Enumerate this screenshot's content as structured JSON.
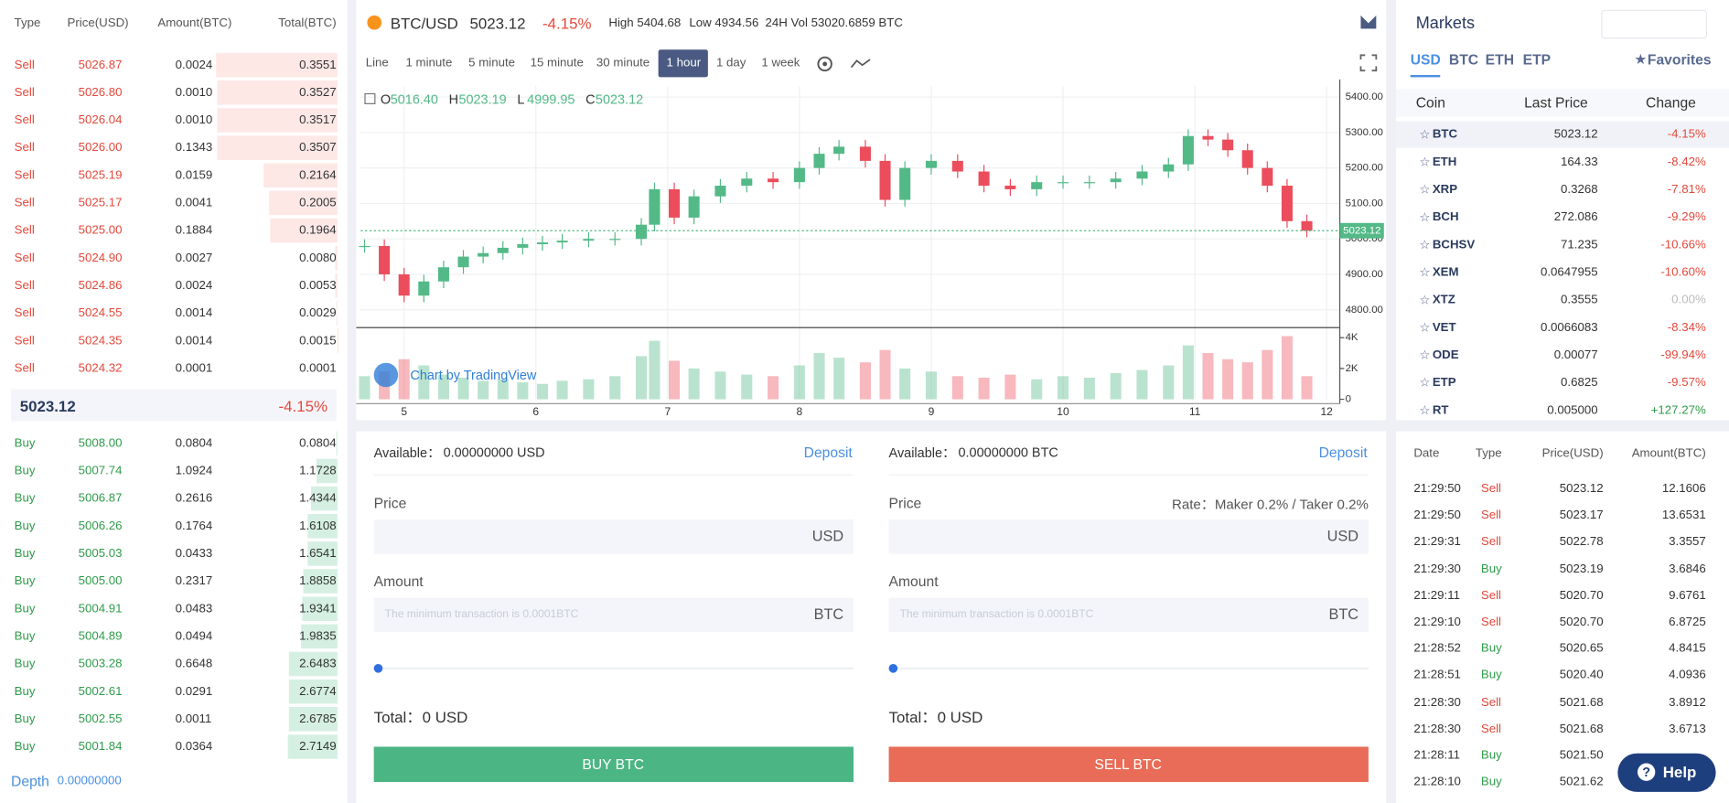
{
  "orderbook": {
    "headers": [
      "Type",
      "Price(USD)",
      "Amount(BTC)",
      "Total(BTC)"
    ],
    "asks": [
      [
        "Sell",
        "5026.87",
        "0.0024",
        "0.3551"
      ],
      [
        "Sell",
        "5026.80",
        "0.0010",
        "0.3527"
      ],
      [
        "Sell",
        "5026.04",
        "0.0010",
        "0.3517"
      ],
      [
        "Sell",
        "5026.00",
        "0.1343",
        "0.3507"
      ],
      [
        "Sell",
        "5025.19",
        "0.0159",
        "0.2164"
      ],
      [
        "Sell",
        "5025.17",
        "0.0041",
        "0.2005"
      ],
      [
        "Sell",
        "5025.00",
        "0.1884",
        "0.1964"
      ],
      [
        "Sell",
        "5024.90",
        "0.0027",
        "0.0080"
      ],
      [
        "Sell",
        "5024.86",
        "0.0024",
        "0.0053"
      ],
      [
        "Sell",
        "5024.55",
        "0.0014",
        "0.0029"
      ],
      [
        "Sell",
        "5024.35",
        "0.0014",
        "0.0015"
      ],
      [
        "Sell",
        "5024.32",
        "0.0001",
        "0.0001"
      ]
    ],
    "last_price": "5023.12",
    "last_change": "-4.15%",
    "bids": [
      [
        "Buy",
        "5008.00",
        "0.0804",
        "0.0804"
      ],
      [
        "Buy",
        "5007.74",
        "1.0924",
        "1.1728"
      ],
      [
        "Buy",
        "5006.87",
        "0.2616",
        "1.4344"
      ],
      [
        "Buy",
        "5006.26",
        "0.1764",
        "1.6108"
      ],
      [
        "Buy",
        "5005.03",
        "0.0433",
        "1.6541"
      ],
      [
        "Buy",
        "5005.00",
        "0.2317",
        "1.8858"
      ],
      [
        "Buy",
        "5004.91",
        "0.0483",
        "1.9341"
      ],
      [
        "Buy",
        "5004.89",
        "0.0494",
        "1.9835"
      ],
      [
        "Buy",
        "5003.28",
        "0.6648",
        "2.6483"
      ],
      [
        "Buy",
        "5002.61",
        "0.0291",
        "2.6774"
      ],
      [
        "Buy",
        "5002.55",
        "0.0011",
        "2.6785"
      ],
      [
        "Buy",
        "5001.84",
        "0.0364",
        "2.7149"
      ]
    ],
    "depth_label": "Depth",
    "depth_value": "0.00000000"
  },
  "header": {
    "pair": "BTC/USD",
    "price": "5023.12",
    "change": "-4.15%",
    "high": "High 5404.68",
    "low": "Low 4934.56",
    "volume": "24H Vol 53020.6859 BTC"
  },
  "toolbar": {
    "intervals": [
      {
        "label": "Line"
      },
      {
        "label": "1 minute"
      },
      {
        "label": "5 minute"
      },
      {
        "label": "15 minute"
      },
      {
        "label": "30 minute"
      },
      {
        "label": "1 hour",
        "active": true
      },
      {
        "label": "1 day"
      },
      {
        "label": "1 week"
      }
    ]
  },
  "chart_data": {
    "type": "candlestick",
    "up_color": "#53b987",
    "down_color": "#eb4d5c",
    "legend": [
      {
        "key": "O",
        "value": "5016.40"
      },
      {
        "key": "H",
        "value": "5023.19"
      },
      {
        "key": "L",
        "value": "4999.95"
      },
      {
        "key": "C",
        "value": "5023.12"
      }
    ],
    "watermark": "Chart by TradingView",
    "x": [
      4.7,
      4.85,
      5.0,
      5.15,
      5.3,
      5.45,
      5.6,
      5.75,
      5.9,
      6.05,
      6.2,
      6.4,
      6.6,
      6.8,
      6.9,
      7.05,
      7.2,
      7.4,
      7.6,
      7.8,
      8.0,
      8.15,
      8.3,
      8.5,
      8.65,
      8.8,
      9.0,
      9.2,
      9.4,
      9.6,
      9.8,
      10.0,
      10.2,
      10.4,
      10.6,
      10.8,
      10.95,
      11.1,
      11.25,
      11.4,
      11.55,
      11.7,
      11.85
    ],
    "close": [
      4980,
      4900,
      4840,
      4880,
      4920,
      4950,
      4960,
      4975,
      4985,
      4990,
      4995,
      5000,
      5000,
      5040,
      5140,
      5060,
      5120,
      5150,
      5170,
      5160,
      5200,
      5240,
      5260,
      5220,
      5110,
      5200,
      5220,
      5190,
      5150,
      5140,
      5160,
      5160,
      5160,
      5170,
      5190,
      5210,
      5290,
      5280,
      5250,
      5200,
      5150,
      5050,
      5023.12
    ],
    "volume": [
      1500,
      1800,
      2600,
      2200,
      1600,
      1400,
      1200,
      1300,
      1100,
      1000,
      1200,
      1300,
      1500,
      2800,
      3800,
      2500,
      2000,
      1800,
      1600,
      1500,
      2200,
      3000,
      2700,
      2400,
      3200,
      2000,
      1800,
      1500,
      1400,
      1600,
      1300,
      1500,
      1400,
      1700,
      1900,
      2200,
      3500,
      3000,
      2600,
      2400,
      3200,
      4100,
      1500
    ],
    "last_price": 5023.12,
    "xlim": [
      4.67,
      12.1
    ],
    "xticks": [
      5,
      6,
      7,
      8,
      9,
      10,
      11,
      12
    ],
    "ylim": [
      4753,
      5431
    ],
    "yticks": [
      {
        "value": 4800,
        "label": "4800.00"
      },
      {
        "value": 4900,
        "label": "4900.00"
      },
      {
        "value": 5000,
        "label": "5000.00"
      },
      {
        "value": 5100,
        "label": "5100.00"
      },
      {
        "value": 5200,
        "label": "5200.00"
      },
      {
        "value": 5300,
        "label": "5300.00"
      },
      {
        "value": 5400,
        "label": "5400.00"
      }
    ],
    "volume_ylim": [
      0,
      4440
    ],
    "volume_yticks": [
      0,
      {
        "value": 2000,
        "label": "2K"
      },
      {
        "value": 4000,
        "label": "4K"
      }
    ],
    "grid": true
  },
  "trade": {
    "buy": {
      "available_label": "Available：",
      "available": "0.00000000 USD",
      "deposit": "Deposit",
      "price_label": "Price",
      "price_unit": "USD",
      "amount_label": "Amount",
      "amount_placeholder": "The minimum transaction is 0.0001BTC",
      "amount_unit": "BTC",
      "total_label": "Total：",
      "total": "0 USD",
      "button": "BUY BTC"
    },
    "sell": {
      "available_label": "Available：",
      "available": "0.00000000 BTC",
      "deposit": "Deposit",
      "price_label": "Price",
      "rate": "Rate：Maker 0.2% / Taker 0.2%",
      "price_unit": "USD",
      "amount_label": "Amount",
      "amount_placeholder": "The minimum transaction is 0.0001BTC",
      "amount_unit": "BTC",
      "total_label": "Total：",
      "total": "0 USD",
      "button": "SELL BTC"
    }
  },
  "markets": {
    "title": "Markets",
    "tabs": [
      {
        "label": "USD",
        "active": true
      },
      {
        "label": "BTC"
      },
      {
        "label": "ETH"
      },
      {
        "label": "ETP"
      }
    ],
    "favorites": "Favorites",
    "headers": [
      "Coin",
      "Last Price",
      "Change"
    ],
    "rows": [
      {
        "coin": "BTC",
        "price": "5023.12",
        "change": "-4.15%",
        "selected": true
      },
      {
        "coin": "ETH",
        "price": "164.33",
        "change": "-8.42%"
      },
      {
        "coin": "XRP",
        "price": "0.3268",
        "change": "-7.81%"
      },
      {
        "coin": "BCH",
        "price": "272.086",
        "change": "-9.29%"
      },
      {
        "coin": "BCHSV",
        "price": "71.235",
        "change": "-10.66%"
      },
      {
        "coin": "XEM",
        "price": "0.0647955",
        "change": "-10.60%"
      },
      {
        "coin": "XTZ",
        "price": "0.3555",
        "change": "0.00%"
      },
      {
        "coin": "VET",
        "price": "0.0066083",
        "change": "-8.34%"
      },
      {
        "coin": "ODE",
        "price": "0.00077",
        "change": "-99.94%"
      },
      {
        "coin": "ETP",
        "price": "0.6825",
        "change": "-9.57%"
      },
      {
        "coin": "RT",
        "price": "0.005000",
        "change": "+127.27%"
      }
    ]
  },
  "trades": {
    "headers": [
      "Date",
      "Type",
      "Price(USD)",
      "Amount(BTC)"
    ],
    "rows": [
      [
        "21:29:50",
        "Sell",
        "5023.12",
        "12.1606"
      ],
      [
        "21:29:50",
        "Sell",
        "5023.17",
        "13.6531"
      ],
      [
        "21:29:31",
        "Sell",
        "5022.78",
        "3.3557"
      ],
      [
        "21:29:30",
        "Buy",
        "5023.19",
        "3.6846"
      ],
      [
        "21:29:11",
        "Sell",
        "5020.70",
        "9.6761"
      ],
      [
        "21:29:10",
        "Sell",
        "5020.70",
        "6.8725"
      ],
      [
        "21:28:52",
        "Buy",
        "5020.65",
        "4.8415"
      ],
      [
        "21:28:51",
        "Buy",
        "5020.40",
        "4.0936"
      ],
      [
        "21:28:30",
        "Sell",
        "5021.68",
        "3.8912"
      ],
      [
        "21:28:30",
        "Sell",
        "5021.68",
        "3.6713"
      ],
      [
        "21:28:11",
        "Buy",
        "5021.50"
      ],
      [
        "21:28:10",
        "Buy",
        "5021.62"
      ]
    ]
  },
  "help": "Help"
}
